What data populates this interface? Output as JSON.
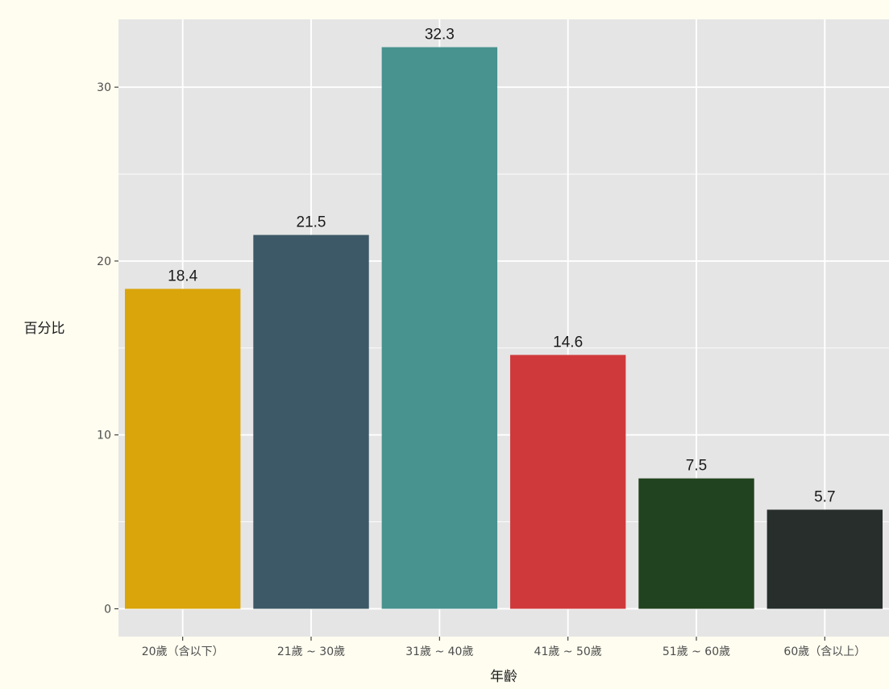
{
  "chart_data": {
    "type": "bar",
    "categories": [
      "20歲（含以下）",
      "21歲 ~ 30歲",
      "31歲 ~ 40歲",
      "41歲 ~ 50歲",
      "51歲 ~ 60歲",
      "60歲（含以上）"
    ],
    "values": [
      18.4,
      21.5,
      32.3,
      14.6,
      7.5,
      5.7
    ],
    "value_labels": [
      "18.4",
      "21.5",
      "32.3",
      "14.6",
      "7.5",
      "5.7"
    ],
    "colors": [
      "#d9a50b",
      "#3d5967",
      "#48928f",
      "#d0393b",
      "#22431f",
      "#272e2c"
    ],
    "title": "",
    "xlabel": "年齡",
    "ylabel": "百分比",
    "ylim": [
      -1.6,
      33.9
    ],
    "yticks": [
      0,
      10,
      20,
      30
    ],
    "ytick_labels": [
      "0",
      "10",
      "20",
      "30"
    ],
    "grid": true,
    "panel_background": "#e5e5e5",
    "grid_color": "#ffffff",
    "page_background": "#fffdf0",
    "legend": "none"
  }
}
